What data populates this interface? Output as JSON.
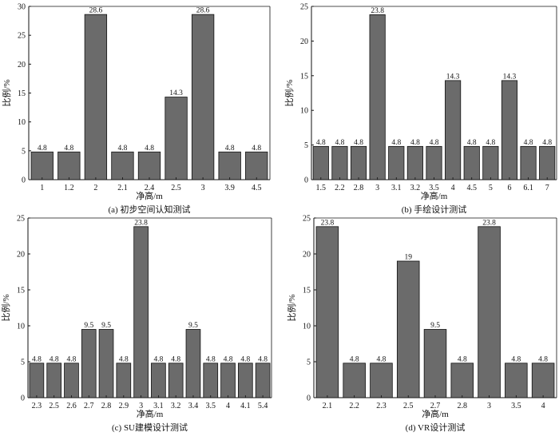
{
  "colors": {
    "bar": "#6b6b6b",
    "bar_stroke": "#111111",
    "axis": "#111111"
  },
  "chart_data": [
    {
      "type": "bar",
      "caption": "(a) 初步空间认知测试",
      "xlabel": "净高/m",
      "ylabel": "比例/%",
      "ylim": [
        0,
        30
      ],
      "yticks": [
        0,
        5,
        10,
        15,
        20,
        25,
        30
      ],
      "categories": [
        "1",
        "1.2",
        "2",
        "2.1",
        "2.4",
        "2.5",
        "3",
        "3.9",
        "4.5"
      ],
      "values": [
        4.8,
        4.8,
        28.6,
        4.8,
        4.8,
        14.3,
        28.6,
        4.8,
        4.8
      ],
      "value_labels": [
        "4.8",
        "4.8",
        "28.6",
        "4.8",
        "4.8",
        "14.3",
        "28.6",
        "4.8",
        "4.8"
      ]
    },
    {
      "type": "bar",
      "caption": "(b) 手绘设计测试",
      "xlabel": "净高/m",
      "ylabel": "比例/%",
      "ylim": [
        0,
        25
      ],
      "yticks": [
        0,
        5,
        10,
        15,
        20,
        25
      ],
      "categories": [
        "1.5",
        "2.2",
        "2.8",
        "3",
        "3.1",
        "3.2",
        "3.5",
        "4",
        "4.5",
        "5",
        "6",
        "6.1",
        "7"
      ],
      "values": [
        4.8,
        4.8,
        4.8,
        23.8,
        4.8,
        4.8,
        4.8,
        14.3,
        4.8,
        4.8,
        14.3,
        4.8,
        4.8
      ],
      "value_labels": [
        "4.8",
        "4.8",
        "4.8",
        "23.8",
        "4.8",
        "4.8",
        "4.8",
        "14.3",
        "4.8",
        "4.8",
        "14.3",
        "4.8",
        "4.8"
      ]
    },
    {
      "type": "bar",
      "caption": "(c) SU建模设计测试",
      "xlabel": "净高/m",
      "ylabel": "比例/%",
      "ylim": [
        0,
        25
      ],
      "yticks": [
        0,
        5,
        10,
        15,
        20,
        25
      ],
      "categories": [
        "2.3",
        "2.5",
        "2.6",
        "2.7",
        "2.8",
        "2.9",
        "3",
        "3.1",
        "3.2",
        "3.4",
        "3.5",
        "4",
        "4.1",
        "5.4"
      ],
      "values": [
        4.8,
        4.8,
        4.8,
        9.5,
        9.5,
        4.8,
        23.8,
        4.8,
        4.8,
        9.5,
        4.8,
        4.8,
        4.8,
        4.8
      ],
      "value_labels": [
        "4.8",
        "4.8",
        "4.8",
        "9.5",
        "9.5",
        "4.8",
        "23.8",
        "4.8",
        "4.8",
        "9.5",
        "4.8",
        "4.8",
        "4.8",
        "4.8"
      ]
    },
    {
      "type": "bar",
      "caption": "(d) VR设计测试",
      "xlabel": "净高/m",
      "ylabel": "比例/%",
      "ylim": [
        0,
        25
      ],
      "yticks": [
        0,
        5,
        10,
        15,
        20,
        25
      ],
      "categories": [
        "2.1",
        "2.2",
        "2.3",
        "2.5",
        "2.7",
        "2.8",
        "3",
        "3.5",
        "4"
      ],
      "values": [
        23.8,
        4.8,
        4.8,
        19,
        9.5,
        4.8,
        23.8,
        4.8,
        4.8
      ],
      "value_labels": [
        "23.8",
        "4.8",
        "4.8",
        "19",
        "9.5",
        "4.8",
        "23.8",
        "4.8",
        "4.8"
      ]
    }
  ]
}
